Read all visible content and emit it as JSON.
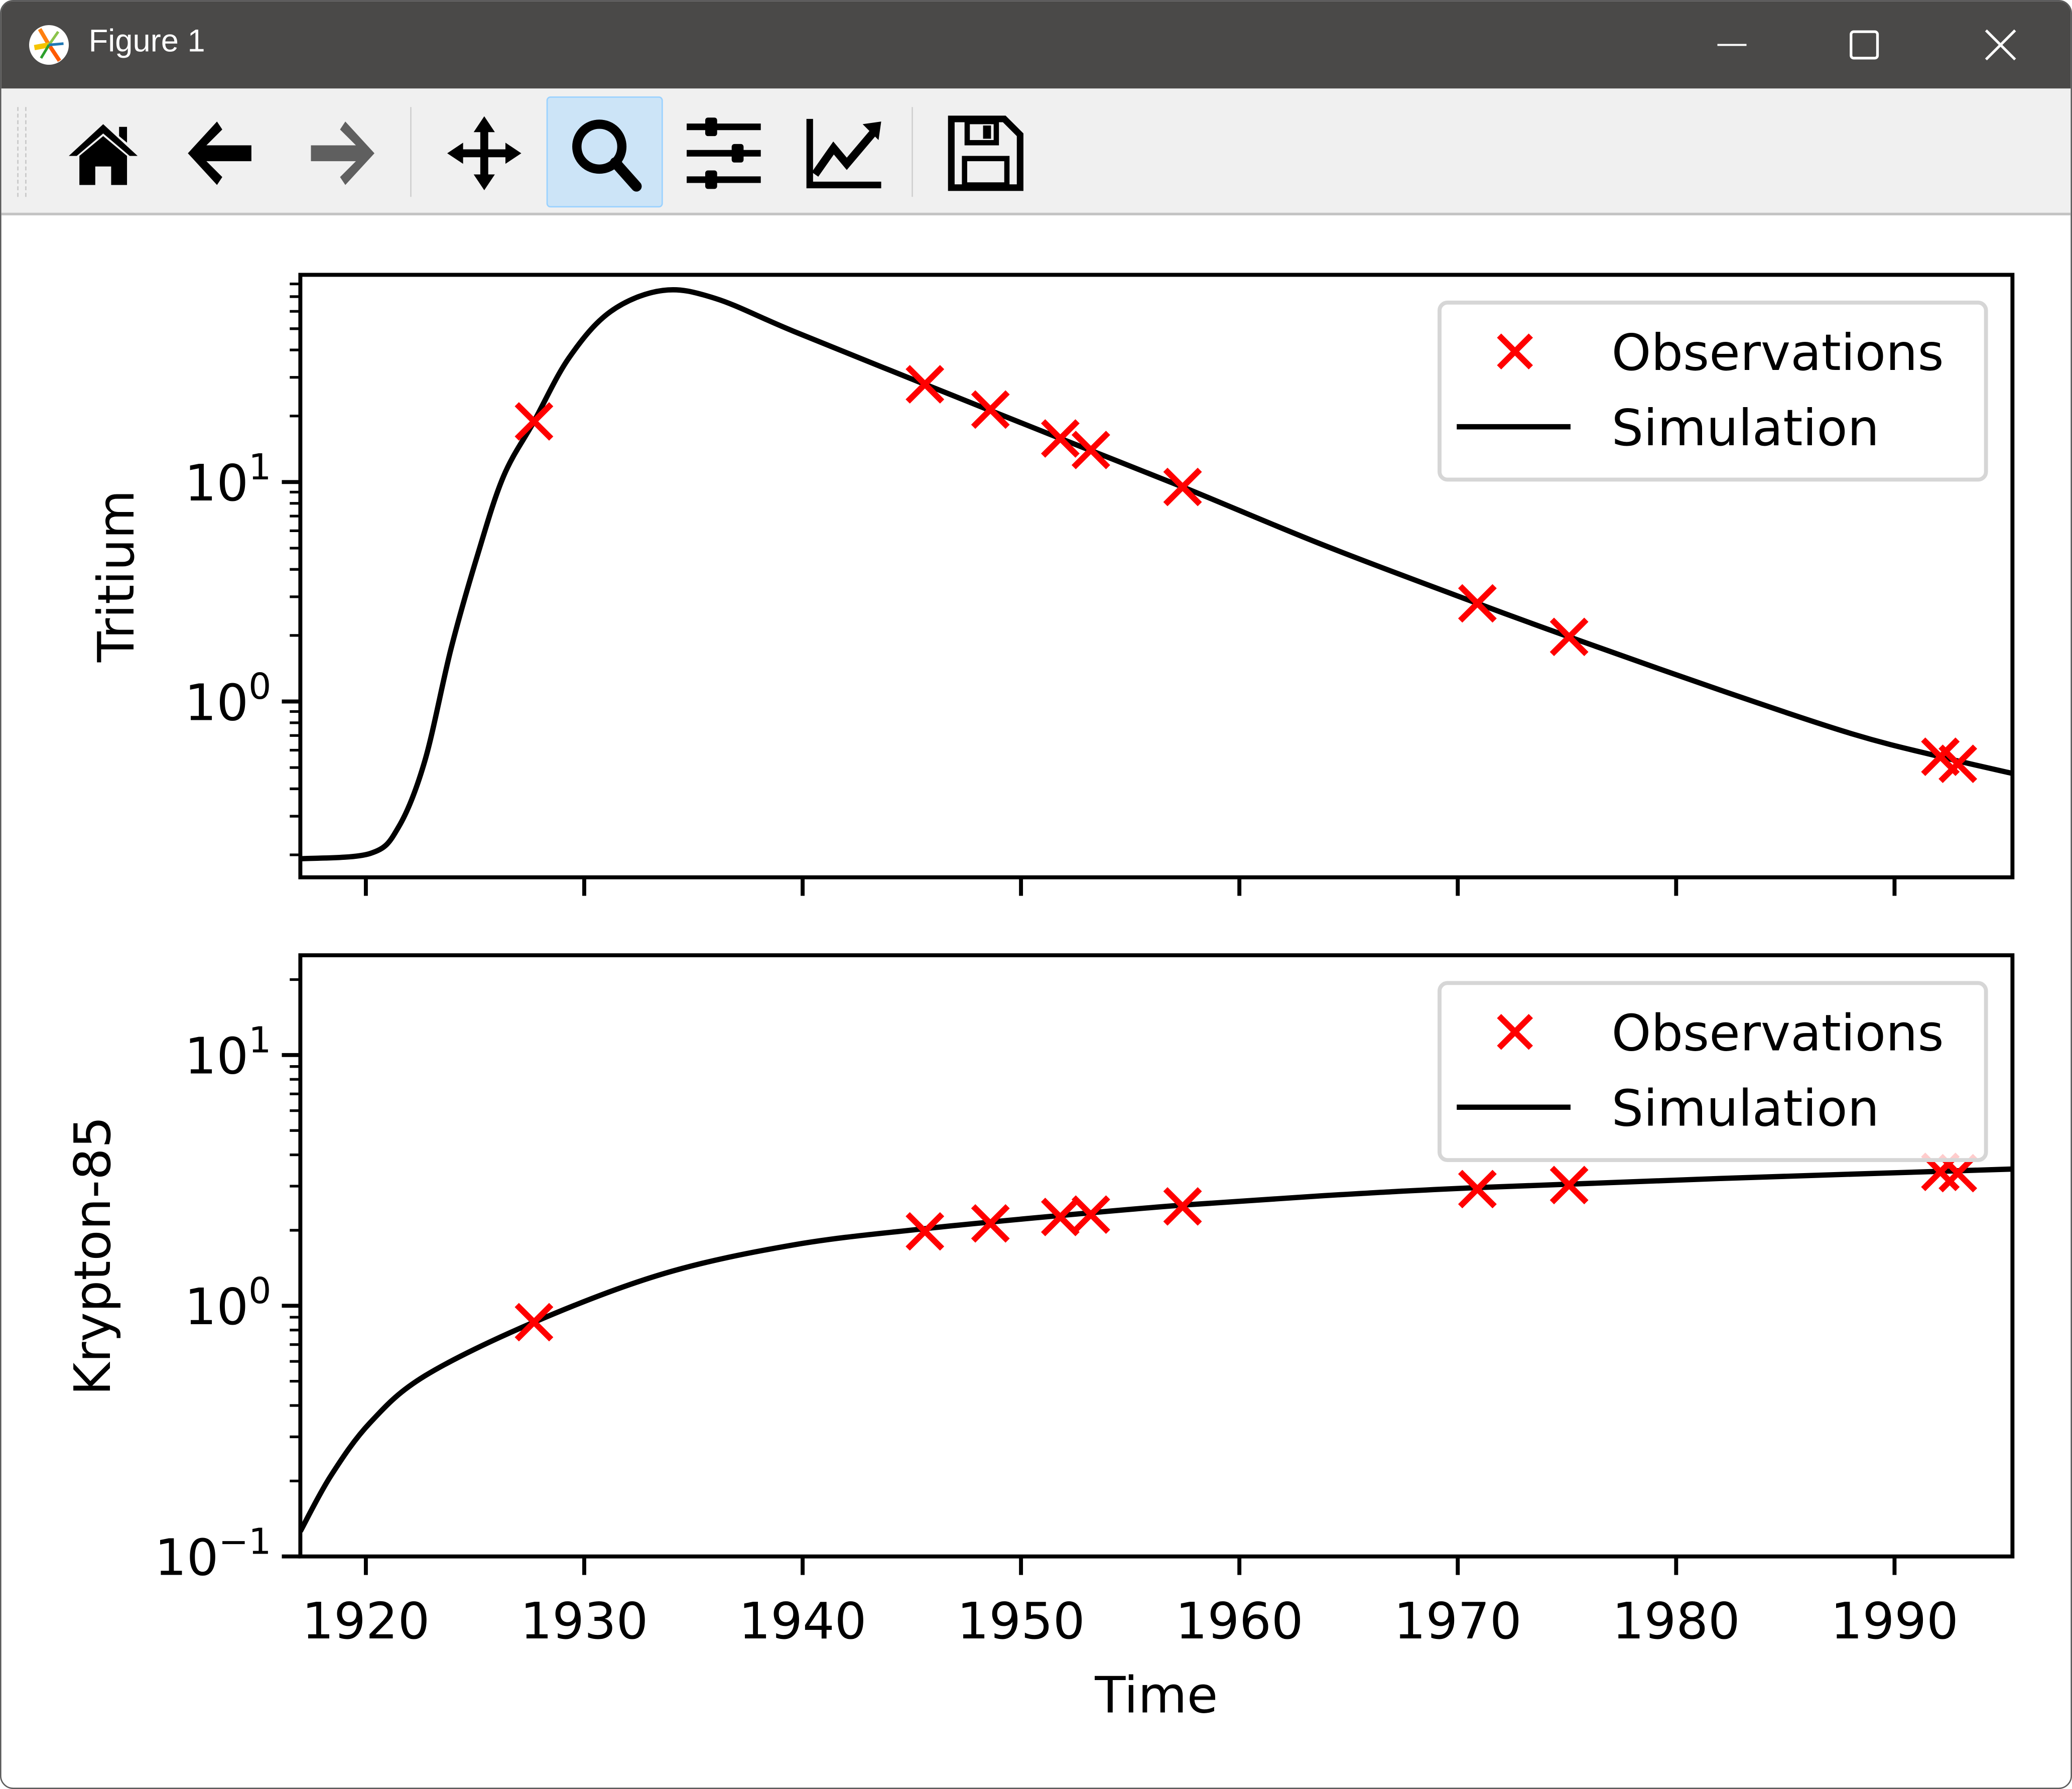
{
  "window": {
    "title": "Figure 1",
    "controls": [
      "minimize",
      "maximize",
      "close"
    ]
  },
  "toolbar": {
    "buttons": [
      {
        "name": "home",
        "icon": "home-icon",
        "enabled": true,
        "active": false
      },
      {
        "name": "back",
        "icon": "arrow-left-icon",
        "enabled": true,
        "active": false
      },
      {
        "name": "forward",
        "icon": "arrow-right-icon",
        "enabled": false,
        "active": false
      },
      {
        "name": "pan",
        "icon": "move-icon",
        "enabled": true,
        "active": false
      },
      {
        "name": "zoom",
        "icon": "magnifier-icon",
        "enabled": true,
        "active": true
      },
      {
        "name": "subplots",
        "icon": "sliders-icon",
        "enabled": true,
        "active": false
      },
      {
        "name": "edit-axes",
        "icon": "line-chart-icon",
        "enabled": true,
        "active": false
      },
      {
        "name": "save",
        "icon": "floppy-disk-icon",
        "enabled": true,
        "active": false
      }
    ],
    "active_color": "#cce4f7"
  },
  "chart_data": [
    {
      "type": "line",
      "ylabel": "Tritium",
      "xlabel": "",
      "yscale": "log",
      "xlim": [
        1917.0,
        1995.4
      ],
      "ylim": [
        0.158,
        88
      ],
      "xticks": [
        1920,
        1930,
        1940,
        1950,
        1960,
        1970,
        1980,
        1990
      ],
      "xtick_labels_shown": false,
      "yticks": [
        {
          "value": 1,
          "base": "10",
          "exp": "0"
        },
        {
          "value": 10,
          "base": "10",
          "exp": "1"
        }
      ],
      "grid": false,
      "legend": {
        "placement": "top-right",
        "entries": [
          "Observations",
          "Simulation"
        ]
      },
      "series": [
        {
          "name": "Observations",
          "kind": "scatter",
          "marker": "x",
          "color": "#ff0000",
          "x": [
            1927.7,
            1945.6,
            1948.6,
            1951.8,
            1953.2,
            1957.4,
            1970.9,
            1975.1,
            1992.1,
            1992.9
          ],
          "y": [
            18.9,
            27.9,
            21.4,
            15.8,
            14.0,
            9.5,
            2.8,
            1.97,
            0.56,
            0.52
          ]
        },
        {
          "name": "Simulation",
          "kind": "line",
          "color": "#000000",
          "x": [
            1917.0,
            1920.2,
            1921.5,
            1922.7,
            1923.9,
            1925.1,
            1926.3,
            1927.7,
            1929.3,
            1931.2,
            1933.6,
            1936.0,
            1939.6,
            1945.6,
            1951.8,
            1957.4,
            1963.9,
            1970.9,
            1975.1,
            1982.1,
            1988.1,
            1992.1,
            1995.4
          ],
          "y": [
            0.192,
            0.203,
            0.268,
            0.536,
            1.74,
            4.6,
            10.6,
            18.9,
            36.8,
            59.8,
            74.7,
            68.7,
            48.6,
            27.9,
            15.8,
            9.5,
            5.14,
            2.8,
            1.97,
            1.12,
            0.71,
            0.56,
            0.47
          ]
        }
      ]
    },
    {
      "type": "line",
      "ylabel": "Krypton-85",
      "xlabel": "Time",
      "yscale": "log",
      "xlim": [
        1917.0,
        1995.4
      ],
      "ylim": [
        0.1,
        25
      ],
      "xticks": [
        1920,
        1930,
        1940,
        1950,
        1960,
        1970,
        1980,
        1990
      ],
      "xtick_labels": [
        "1920",
        "1930",
        "1940",
        "1950",
        "1960",
        "1970",
        "1980",
        "1990"
      ],
      "yticks": [
        {
          "value": 0.1,
          "base": "10",
          "exp": "−1"
        },
        {
          "value": 1,
          "base": "10",
          "exp": "0"
        },
        {
          "value": 10,
          "base": "10",
          "exp": "1"
        }
      ],
      "grid": false,
      "legend": {
        "placement": "top-right",
        "entries": [
          "Observations",
          "Simulation"
        ]
      },
      "series": [
        {
          "name": "Observations",
          "kind": "scatter",
          "marker": "x",
          "color": "#ff0000",
          "x": [
            1927.7,
            1945.6,
            1948.6,
            1951.8,
            1953.2,
            1957.4,
            1970.9,
            1975.1,
            1992.1,
            1992.9
          ],
          "y": [
            0.86,
            1.98,
            2.13,
            2.26,
            2.31,
            2.49,
            2.92,
            3.03,
            3.42,
            3.38
          ]
        },
        {
          "name": "Simulation",
          "kind": "line",
          "color": "#000000",
          "x": [
            1917.0,
            1918.4,
            1920.2,
            1922.7,
            1927.7,
            1933.6,
            1939.6,
            1945.6,
            1951.8,
            1957.4,
            1963.9,
            1970.9,
            1982.1,
            1995.4
          ],
          "y": [
            0.126,
            0.21,
            0.342,
            0.525,
            0.86,
            1.34,
            1.75,
            2.03,
            2.29,
            2.52,
            2.75,
            2.96,
            3.22,
            3.51
          ]
        }
      ]
    }
  ]
}
